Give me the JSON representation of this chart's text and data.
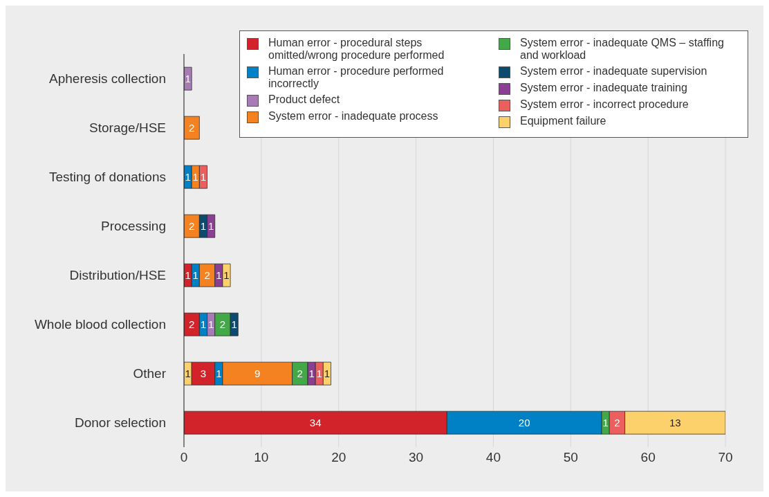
{
  "chart_data": {
    "type": "bar",
    "orientation": "horizontal",
    "stacked": true,
    "categories": [
      "Apheresis collection",
      "Storage/HSE",
      "Testing of donations",
      "Processing",
      "Distribution/HSE",
      "Whole blood collection",
      "Other",
      "Donor selection"
    ],
    "series": [
      {
        "color": "#fcd16b",
        "values": [
          null,
          null,
          null,
          null,
          null,
          null,
          1,
          null
        ]
      },
      {
        "name": "Human error - procedural steps omitted/wrong procedure performed",
        "color": "#d2232a",
        "values": [
          null,
          null,
          null,
          null,
          1,
          2,
          3,
          34
        ]
      },
      {
        "name": "Human error - procedure performed incorrectly",
        "color": "#0081c6",
        "values": [
          null,
          null,
          1,
          null,
          1,
          1,
          1,
          20
        ]
      },
      {
        "name": "Product defect",
        "color": "#a77bb5",
        "values": [
          1,
          null,
          null,
          null,
          null,
          1,
          null,
          null
        ]
      },
      {
        "name": "System error - inadequate process",
        "color": "#f58220",
        "values": [
          null,
          2,
          1,
          2,
          2,
          null,
          9,
          null
        ]
      },
      {
        "name": "System error - inadequate QMS – staffing and workload",
        "color": "#43a847",
        "values": [
          null,
          null,
          null,
          null,
          null,
          2,
          2,
          1
        ]
      },
      {
        "name": "System error - inadequate supervision",
        "color": "#0d4a70",
        "values": [
          null,
          null,
          null,
          1,
          null,
          1,
          null,
          null
        ]
      },
      {
        "name": "System error - inadequate training",
        "color": "#8b3f93",
        "values": [
          null,
          null,
          null,
          1,
          1,
          null,
          1,
          null
        ]
      },
      {
        "name": "System error - incorrect procedure",
        "color": "#ec5f5f",
        "values": [
          null,
          null,
          1,
          null,
          null,
          null,
          1,
          2
        ]
      },
      {
        "name": "Equipment failure",
        "color": "#fcd16b",
        "values": [
          null,
          null,
          null,
          null,
          1,
          null,
          1,
          13
        ]
      }
    ],
    "xlim": [
      0,
      70
    ],
    "xticks": [
      0,
      10,
      20,
      30,
      40,
      50,
      60,
      70
    ],
    "grid": "x",
    "legend": "top right",
    "data_labels": true
  }
}
